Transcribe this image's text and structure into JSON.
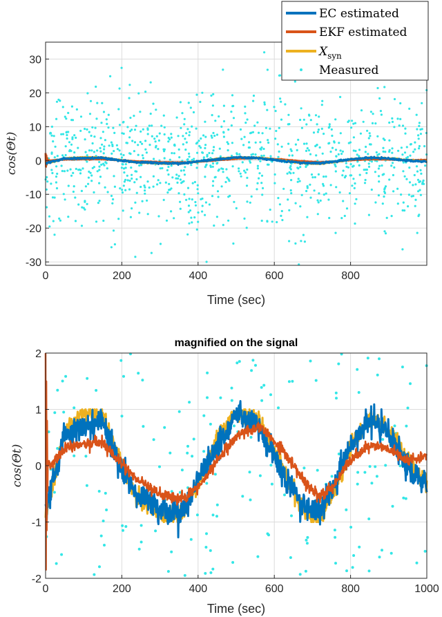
{
  "chart_data": [
    {
      "type": "line",
      "xlabel": "Time (sec)",
      "ylabel": "cos(Θt)",
      "xlim": [
        0,
        1000
      ],
      "ylim": [
        -31,
        35
      ],
      "xticks": [
        0,
        200,
        400,
        600,
        800
      ],
      "yticks": [
        -30,
        -20,
        -10,
        0,
        10,
        20,
        30
      ],
      "grid": true,
      "legend_position": "top-right",
      "series": [
        {
          "name": "EC estimated",
          "label_main": "EC estimated",
          "color": "#0072BD",
          "marker": "line"
        },
        {
          "name": "EKF estimated",
          "label_main": "EKF estimated",
          "color": "#D95319",
          "marker": "line"
        },
        {
          "name": "X_syn",
          "label_main": "X",
          "label_sub": "syn",
          "color": "#EDB120",
          "marker": "line"
        },
        {
          "name": "Measured",
          "label_main": "Measured",
          "color": "#33E6E6",
          "marker": "dot"
        }
      ],
      "signal_keypoints": {
        "x": [
          0,
          20,
          50,
          100,
          150,
          190,
          240,
          300,
          360,
          400,
          450,
          500,
          560,
          620,
          680,
          720,
          760,
          800,
          850,
          900,
          950,
          1000
        ],
        "syn": [
          -0.9,
          -0.3,
          0.6,
          0.95,
          0.9,
          0.2,
          -0.6,
          -0.9,
          -0.9,
          -0.3,
          0.5,
          0.95,
          0.8,
          0.0,
          -0.85,
          -0.95,
          -0.4,
          0.3,
          0.9,
          0.6,
          0.1,
          -0.3
        ],
        "ec": [
          -0.8,
          -0.2,
          0.5,
          0.7,
          0.75,
          0.1,
          -0.5,
          -0.75,
          -0.8,
          -0.3,
          0.4,
          0.9,
          0.7,
          -0.1,
          -0.75,
          -0.8,
          -0.3,
          0.35,
          0.8,
          0.55,
          0.0,
          -0.4
        ],
        "ekf": [
          0.0,
          0.05,
          0.3,
          0.4,
          0.4,
          0.1,
          -0.25,
          -0.5,
          -0.6,
          -0.4,
          0.1,
          0.5,
          0.7,
          0.3,
          -0.3,
          -0.55,
          -0.3,
          0.1,
          0.35,
          0.3,
          0.1,
          0.15
        ]
      },
      "measured_noise_std": 10
    },
    {
      "type": "line",
      "title": "magnified on the signal",
      "xlabel": "Time (sec)",
      "ylabel": "cos(Θt)",
      "xlim": [
        0,
        1000
      ],
      "ylim": [
        -2,
        2
      ],
      "xticks": [
        0,
        200,
        400,
        600,
        800,
        1000
      ],
      "yticks": [
        -2,
        -1,
        0,
        1,
        2
      ],
      "grid": true
    }
  ]
}
